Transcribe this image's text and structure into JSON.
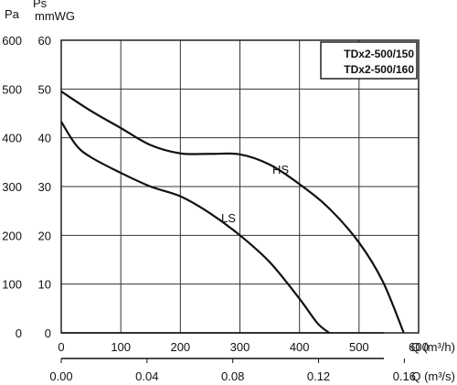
{
  "chart_data": {
    "type": "line",
    "legend": [
      "TDx2-500/150",
      "TDx2-500/160"
    ],
    "legend_position": "top-right",
    "grid": true,
    "y_left_label": "Pa",
    "y_right_label_top": "Ps",
    "y_right_label_bottom": "mmWG",
    "x_label_top": "Q (m³/h)",
    "x_label_bottom": "Q (m³/s)",
    "x_ticks_top": [
      "0",
      "100",
      "200",
      "300",
      "400",
      "500",
      "600"
    ],
    "x_ticks_bottom": [
      "0.00",
      "0.04",
      "0.08",
      "0.12",
      "0.16"
    ],
    "y_ticks_pa": [
      "0",
      "100",
      "200",
      "300",
      "400",
      "500",
      "600"
    ],
    "y_ticks_mmwg": [
      "0",
      "10",
      "20",
      "30",
      "40",
      "50",
      "60"
    ],
    "xlim": [
      0,
      600
    ],
    "ylim": [
      0,
      600
    ],
    "series": [
      {
        "name": "HS",
        "x": [
          0,
          50,
          100,
          150,
          200,
          250,
          300,
          350,
          400,
          450,
          500,
          540,
          575
        ],
        "y": [
          495,
          455,
          420,
          385,
          368,
          367,
          366,
          345,
          305,
          255,
          185,
          105,
          0
        ]
      },
      {
        "name": "LS",
        "x": [
          0,
          25,
          50,
          100,
          150,
          200,
          250,
          300,
          350,
          400,
          430,
          450
        ],
        "y": [
          433,
          385,
          360,
          328,
          300,
          280,
          245,
          200,
          145,
          70,
          20,
          0
        ]
      }
    ]
  }
}
